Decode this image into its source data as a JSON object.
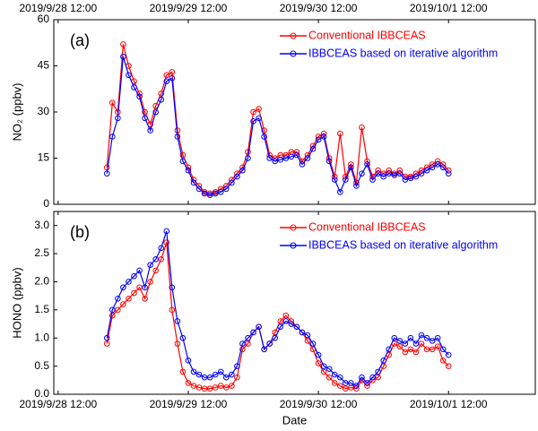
{
  "chart_data": [
    {
      "type": "line",
      "annotation": "(a)",
      "ylabel": "NO₂ (ppbv)",
      "xaxis_position": "top",
      "x": [
        "2019/9/28 21:00",
        "2019/9/28 22:00",
        "2019/9/28 23:00",
        "2019/9/29 00:00",
        "2019/9/29 01:00",
        "2019/9/29 02:00",
        "2019/9/29 03:00",
        "2019/9/29 04:00",
        "2019/9/29 05:00",
        "2019/9/29 06:00",
        "2019/9/29 07:00",
        "2019/9/29 08:00",
        "2019/9/29 09:00",
        "2019/9/29 10:00",
        "2019/9/29 11:00",
        "2019/9/29 12:00",
        "2019/9/29 13:00",
        "2019/9/29 14:00",
        "2019/9/29 15:00",
        "2019/9/29 16:00",
        "2019/9/29 17:00",
        "2019/9/29 18:00",
        "2019/9/29 19:00",
        "2019/9/29 20:00",
        "2019/9/29 21:00",
        "2019/9/29 22:00",
        "2019/9/29 23:00",
        "2019/9/30 00:00",
        "2019/9/30 01:00",
        "2019/9/30 02:00",
        "2019/9/30 03:00",
        "2019/9/30 04:00",
        "2019/9/30 05:00",
        "2019/9/30 06:00",
        "2019/9/30 07:00",
        "2019/9/30 08:00",
        "2019/9/30 09:00",
        "2019/9/30 10:00",
        "2019/9/30 11:00",
        "2019/9/30 12:00",
        "2019/9/30 13:00",
        "2019/9/30 14:00",
        "2019/9/30 15:00",
        "2019/9/30 16:00",
        "2019/9/30 17:00",
        "2019/9/30 18:00",
        "2019/9/30 19:00",
        "2019/9/30 20:00",
        "2019/9/30 21:00",
        "2019/9/30 22:00",
        "2019/9/30 23:00",
        "2019/10/1 00:00",
        "2019/10/1 01:00",
        "2019/10/1 02:00",
        "2019/10/1 03:00",
        "2019/10/1 04:00",
        "2019/10/1 05:00",
        "2019/10/1 06:00",
        "2019/10/1 07:00",
        "2019/10/1 08:00",
        "2019/10/1 09:00",
        "2019/10/1 10:00",
        "2019/10/1 11:00",
        "2019/10/1 12:00"
      ],
      "xlim": [
        "2019/9/28 11:12",
        "2019/10/2 04:00"
      ],
      "xticks": [
        "2019/9/28 12:00",
        "2019/9/29 12:00",
        "2019/9/30 12:00",
        "2019/10/1 12:00"
      ],
      "ylim": [
        0,
        60
      ],
      "yticks": [
        0,
        15,
        30,
        45,
        60
      ],
      "series": [
        {
          "name": "Conventional IBBCEAS",
          "color": "#ff0000",
          "values": [
            12,
            33,
            30,
            52,
            45,
            40,
            36,
            30,
            26,
            32,
            36,
            42,
            43,
            24,
            16,
            12,
            8,
            6,
            4,
            3.5,
            4,
            5,
            6,
            8,
            10,
            12,
            17,
            30,
            31,
            24,
            16,
            15,
            16,
            16,
            17,
            17,
            14,
            16,
            19,
            22,
            23,
            15,
            9,
            23,
            9,
            13,
            7,
            25,
            14,
            9,
            11,
            10,
            11,
            10,
            11,
            9,
            9,
            10,
            11,
            12,
            13,
            14,
            13,
            11
          ]
        },
        {
          "name": "IBBCEAS based on iterative algorithm",
          "color": "#0000ff",
          "values": [
            10,
            22,
            28,
            48,
            42,
            38,
            35,
            28,
            24,
            30,
            34,
            40,
            41,
            22,
            14,
            11,
            7,
            5,
            3.5,
            3,
            3.5,
            4,
            5,
            7,
            9,
            11,
            15,
            27,
            28,
            22,
            15,
            14,
            14.5,
            15,
            15.5,
            16,
            13,
            15,
            18,
            21,
            22,
            14,
            8,
            4,
            8,
            12,
            6,
            10,
            13,
            8,
            10,
            9,
            10,
            9.5,
            10,
            8,
            8.5,
            9,
            10,
            11,
            12,
            13,
            12,
            10
          ]
        }
      ]
    },
    {
      "type": "line",
      "annotation": "(b)",
      "ylabel": "HONO (ppbv)",
      "xlabel": "Date",
      "xaxis_position": "bottom",
      "x": [
        "2019/9/28 21:00",
        "2019/9/28 22:00",
        "2019/9/28 23:00",
        "2019/9/29 00:00",
        "2019/9/29 01:00",
        "2019/9/29 02:00",
        "2019/9/29 03:00",
        "2019/9/29 04:00",
        "2019/9/29 05:00",
        "2019/9/29 06:00",
        "2019/9/29 07:00",
        "2019/9/29 08:00",
        "2019/9/29 09:00",
        "2019/9/29 10:00",
        "2019/9/29 11:00",
        "2019/9/29 12:00",
        "2019/9/29 13:00",
        "2019/9/29 14:00",
        "2019/9/29 15:00",
        "2019/9/29 16:00",
        "2019/9/29 17:00",
        "2019/9/29 18:00",
        "2019/9/29 19:00",
        "2019/9/29 20:00",
        "2019/9/29 21:00",
        "2019/9/29 22:00",
        "2019/9/29 23:00",
        "2019/9/30 00:00",
        "2019/9/30 01:00",
        "2019/9/30 02:00",
        "2019/9/30 03:00",
        "2019/9/30 04:00",
        "2019/9/30 05:00",
        "2019/9/30 06:00",
        "2019/9/30 07:00",
        "2019/9/30 08:00",
        "2019/9/30 09:00",
        "2019/9/30 10:00",
        "2019/9/30 11:00",
        "2019/9/30 12:00",
        "2019/9/30 13:00",
        "2019/9/30 14:00",
        "2019/9/30 15:00",
        "2019/9/30 16:00",
        "2019/9/30 17:00",
        "2019/9/30 18:00",
        "2019/9/30 19:00",
        "2019/9/30 20:00",
        "2019/9/30 21:00",
        "2019/9/30 22:00",
        "2019/9/30 23:00",
        "2019/10/1 00:00",
        "2019/10/1 01:00",
        "2019/10/1 02:00",
        "2019/10/1 03:00",
        "2019/10/1 04:00",
        "2019/10/1 05:00",
        "2019/10/1 06:00",
        "2019/10/1 07:00",
        "2019/10/1 08:00",
        "2019/10/1 09:00",
        "2019/10/1 10:00",
        "2019/10/1 11:00",
        "2019/10/1 12:00"
      ],
      "xlim": [
        "2019/9/28 11:12",
        "2019/10/2 04:00"
      ],
      "xticks": [
        "2019/9/28 12:00",
        "2019/9/29 12:00",
        "2019/9/30 12:00",
        "2019/10/1 12:00"
      ],
      "ylim": [
        0,
        3.25
      ],
      "yticks": [
        {
          "value": 0,
          "label": "0.0"
        },
        0.5,
        {
          "value": 1,
          "label": "1.0"
        },
        1.5,
        {
          "value": 2,
          "label": "2.0"
        },
        2.5,
        {
          "value": 3,
          "label": "3.0"
        }
      ],
      "series": [
        {
          "name": "Conventional IBBCEAS",
          "color": "#ff0000",
          "values": [
            0.9,
            1.4,
            1.5,
            1.6,
            1.7,
            1.8,
            1.9,
            1.7,
            2.0,
            2.2,
            2.4,
            2.7,
            1.5,
            0.9,
            0.4,
            0.2,
            0.15,
            0.12,
            0.1,
            0.1,
            0.12,
            0.15,
            0.12,
            0.15,
            0.3,
            0.8,
            0.9,
            1.1,
            1.2,
            0.8,
            0.9,
            1.1,
            1.3,
            1.4,
            1.3,
            1.2,
            1.1,
            0.95,
            0.8,
            0.55,
            0.4,
            0.3,
            0.2,
            0.15,
            0.1,
            0.12,
            0.1,
            0.25,
            0.15,
            0.25,
            0.3,
            0.5,
            0.7,
            0.9,
            0.85,
            0.75,
            0.8,
            0.75,
            0.9,
            0.8,
            0.8,
            0.85,
            0.6,
            0.5
          ]
        },
        {
          "name": "IBBCEAS based on iterative algorithm",
          "color": "#0000ff",
          "values": [
            1.0,
            1.5,
            1.7,
            1.9,
            2.0,
            2.1,
            2.2,
            1.9,
            2.3,
            2.4,
            2.6,
            2.9,
            1.9,
            1.3,
            1.0,
            0.6,
            0.4,
            0.35,
            0.3,
            0.3,
            0.35,
            0.4,
            0.3,
            0.35,
            0.5,
            0.9,
            1.0,
            1.1,
            1.2,
            0.8,
            0.9,
            1.0,
            1.2,
            1.3,
            1.25,
            1.2,
            1.1,
            1.05,
            0.9,
            0.7,
            0.5,
            0.45,
            0.35,
            0.3,
            0.2,
            0.2,
            0.15,
            0.3,
            0.2,
            0.3,
            0.4,
            0.6,
            0.8,
            1.0,
            0.95,
            0.9,
            1.0,
            0.9,
            1.05,
            1.0,
            0.95,
            1.0,
            0.8,
            0.7
          ]
        }
      ]
    }
  ]
}
